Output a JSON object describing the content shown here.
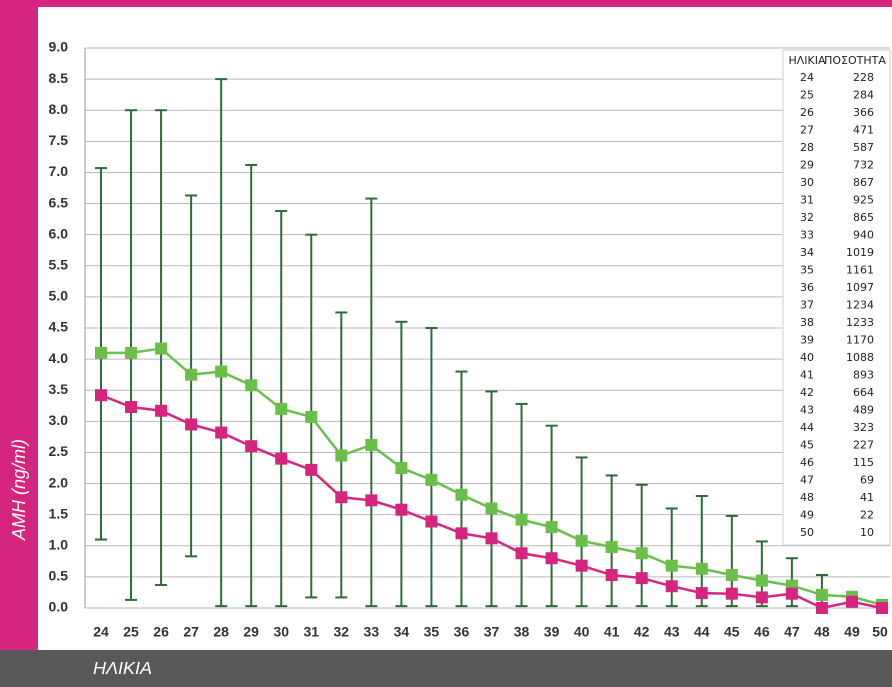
{
  "chart_data": {
    "type": "line",
    "y_label": "AMH (ng/ml)",
    "x_label": "ΗΛΙΚΙΑ",
    "categories": [
      "24",
      "25",
      "26",
      "27",
      "28",
      "29",
      "30",
      "31",
      "32",
      "33",
      "34",
      "35",
      "36",
      "37",
      "38",
      "39",
      "40",
      "41",
      "42",
      "43",
      "44",
      "45",
      "46",
      "47",
      "48",
      "49",
      "50"
    ],
    "series": [
      {
        "color": "#6abf4b",
        "error_color": "#2e6b3a",
        "values": [
          4.1,
          4.1,
          4.17,
          3.75,
          3.8,
          3.58,
          3.2,
          3.07,
          2.45,
          2.62,
          2.25,
          2.06,
          1.82,
          1.6,
          1.42,
          1.3,
          1.08,
          0.98,
          0.88,
          0.68,
          0.63,
          0.53,
          0.44,
          0.36,
          0.21,
          0.18,
          0.05
        ],
        "low": [
          1.1,
          0.13,
          0.37,
          0.83,
          0.03,
          0.03,
          0.03,
          0.17,
          0.17,
          0.03,
          0.03,
          0.03,
          0.03,
          0.03,
          0.03,
          0.03,
          0.03,
          0.03,
          0.03,
          0.03,
          0.03,
          0.03,
          0.03,
          0.03,
          0.03,
          0.03,
          0.03
        ],
        "high": [
          7.07,
          8.0,
          8.0,
          6.63,
          8.5,
          7.12,
          6.38,
          6.0,
          4.75,
          6.58,
          4.6,
          4.5,
          3.8,
          3.48,
          3.28,
          2.93,
          2.42,
          2.13,
          1.98,
          1.6,
          1.8,
          1.48,
          1.07,
          0.8,
          0.53,
          0.25,
          0.1
        ]
      },
      {
        "color": "#d6257e",
        "values": [
          3.42,
          3.23,
          3.17,
          2.95,
          2.82,
          2.6,
          2.4,
          2.22,
          1.78,
          1.73,
          1.58,
          1.39,
          1.2,
          1.12,
          0.88,
          0.8,
          0.68,
          0.53,
          0.48,
          0.35,
          0.24,
          0.23,
          0.17,
          0.23,
          0.0,
          0.1,
          0.0
        ]
      }
    ],
    "ylim": [
      0,
      9
    ],
    "yticks": [
      {
        "value": 0,
        "label": "0.0"
      },
      0.5,
      {
        "value": 1,
        "label": "1.0"
      },
      1.5,
      {
        "value": 2,
        "label": "2.0"
      },
      2.5,
      {
        "value": 3,
        "label": "3.0"
      },
      3.5,
      {
        "value": 4,
        "label": "4.0"
      },
      4.5,
      {
        "value": 5,
        "label": "5.0"
      },
      5.5,
      {
        "value": 6,
        "label": "6.0"
      },
      6.5,
      {
        "value": 7,
        "label": "7.0"
      },
      7.5,
      {
        "value": 8,
        "label": "8.0"
      },
      8.5,
      {
        "value": 9,
        "label": "9.0"
      }
    ],
    "grid": true,
    "table": {
      "columns": [
        "ΗΛΙΚΙΑ",
        "ΠΟΣΟΤΗΤΑ"
      ],
      "rows": [
        [
          "24",
          "228"
        ],
        [
          "25",
          "284"
        ],
        [
          "26",
          "366"
        ],
        [
          "27",
          "471"
        ],
        [
          "28",
          "587"
        ],
        [
          "29",
          "732"
        ],
        [
          "30",
          "867"
        ],
        [
          "31",
          "925"
        ],
        [
          "32",
          "865"
        ],
        [
          "33",
          "940"
        ],
        [
          "34",
          "1019"
        ],
        [
          "35",
          "1161"
        ],
        [
          "36",
          "1097"
        ],
        [
          "37",
          "1234"
        ],
        [
          "38",
          "1233"
        ],
        [
          "39",
          "1170"
        ],
        [
          "40",
          "1088"
        ],
        [
          "41",
          "893"
        ],
        [
          "42",
          "664"
        ],
        [
          "43",
          "489"
        ],
        [
          "44",
          "323"
        ],
        [
          "45",
          "227"
        ],
        [
          "46",
          "115"
        ],
        [
          "47",
          "69"
        ],
        [
          "48",
          "41"
        ],
        [
          "49",
          "22"
        ],
        [
          "50",
          "10"
        ]
      ]
    }
  }
}
